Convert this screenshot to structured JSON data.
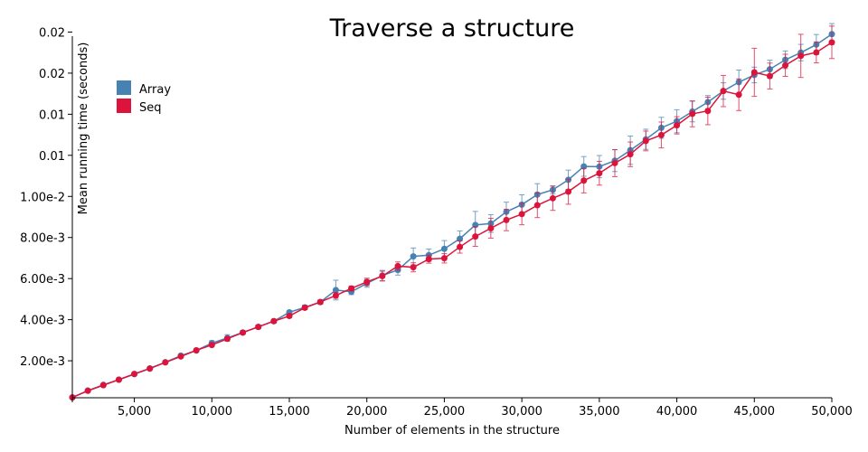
{
  "chart_data": {
    "type": "line",
    "title": "Traverse a structure",
    "xlabel": "Number of elements in the structure",
    "ylabel": "Mean running time (seconds)",
    "xlim": [
      1000,
      50000
    ],
    "ylim": [
      0.0002,
      0.0178
    ],
    "x_ticks": [
      5000,
      10000,
      15000,
      20000,
      25000,
      30000,
      35000,
      40000,
      45000,
      50000
    ],
    "x_tick_labels": [
      "5,000",
      "10,000",
      "15,000",
      "20,000",
      "25,000",
      "30,000",
      "35,000",
      "40,000",
      "45,000",
      "50,000"
    ],
    "y_ticks": [
      0.002,
      0.004,
      0.006,
      0.008,
      0.01,
      0.012,
      0.014,
      0.016,
      0.018
    ],
    "y_tick_labels": [
      "2.00e-3",
      "4.00e-3",
      "6.00e-3",
      "8.00e-3",
      "1.00e-2",
      "0.01",
      "0.01",
      "0.02",
      "0.02"
    ],
    "grid": false,
    "legend_position": "top-left",
    "x": [
      1000,
      2000,
      3000,
      4000,
      5000,
      6000,
      7000,
      8000,
      9000,
      10000,
      11000,
      12000,
      13000,
      14000,
      15000,
      16000,
      17000,
      18000,
      19000,
      20000,
      21000,
      22000,
      23000,
      24000,
      25000,
      26000,
      27000,
      28000,
      29000,
      30000,
      31000,
      32000,
      33000,
      34000,
      35000,
      36000,
      37000,
      38000,
      39000,
      40000,
      41000,
      42000,
      43000,
      44000,
      45000,
      46000,
      47000,
      48000,
      49000,
      50000
    ],
    "series": [
      {
        "name": "Array",
        "color": "#4682b4",
        "values": [
          0.000215,
          0.00055,
          0.00083,
          0.00108,
          0.00135,
          0.00163,
          0.00193,
          0.00225,
          0.0025,
          0.00286,
          0.00311,
          0.00338,
          0.00365,
          0.00393,
          0.00436,
          0.0046,
          0.00486,
          0.00544,
          0.00536,
          0.00577,
          0.00615,
          0.00642,
          0.00708,
          0.00714,
          0.00745,
          0.00794,
          0.00861,
          0.00868,
          0.00925,
          0.0096,
          0.01009,
          0.01032,
          0.01081,
          0.01146,
          0.01145,
          0.01174,
          0.01225,
          0.01278,
          0.01334,
          0.01366,
          0.01413,
          0.01459,
          0.01513,
          0.01556,
          0.01591,
          0.01619,
          0.01665,
          0.017,
          0.01739,
          0.0179
        ],
        "err": [
          2e-05,
          2e-05,
          3e-05,
          3e-05,
          4e-05,
          5e-05,
          5e-05,
          7e-05,
          6e-05,
          0.00012,
          0.00016,
          9e-05,
          9e-05,
          9e-05,
          9e-05,
          0.00011,
          0.0001,
          0.00048,
          0.00014,
          0.00019,
          0.00025,
          0.00025,
          0.00041,
          0.0003,
          0.0004,
          0.00038,
          0.00066,
          0.00043,
          0.00047,
          0.00048,
          0.00053,
          0.00019,
          0.00047,
          0.00048,
          0.00054,
          0.00053,
          0.00069,
          0.00049,
          0.00051,
          0.00056,
          0.0005,
          0.00032,
          0.0004,
          0.00059,
          0.00038,
          0.00044,
          0.00043,
          0.0004,
          0.00049,
          0.00051
        ]
      },
      {
        "name": "Seq",
        "color": "#dc143c",
        "values": [
          0.000215,
          0.00054,
          0.00081,
          0.00108,
          0.00136,
          0.00162,
          0.00192,
          0.00221,
          0.00251,
          0.00277,
          0.00307,
          0.00337,
          0.00365,
          0.00393,
          0.00418,
          0.00458,
          0.00486,
          0.00518,
          0.00552,
          0.00584,
          0.00612,
          0.00661,
          0.00655,
          0.00695,
          0.00699,
          0.00754,
          0.00805,
          0.00845,
          0.00885,
          0.00914,
          0.00957,
          0.00991,
          0.01023,
          0.01077,
          0.01113,
          0.01162,
          0.01205,
          0.0127,
          0.01299,
          0.01346,
          0.01402,
          0.01416,
          0.01513,
          0.01495,
          0.01604,
          0.01586,
          0.01638,
          0.01684,
          0.01701,
          0.0175
        ],
        "err": [
          2e-05,
          2e-05,
          3e-05,
          3e-05,
          4e-05,
          4e-05,
          5e-05,
          5e-05,
          6e-05,
          6e-05,
          7e-05,
          7e-05,
          8e-05,
          8e-05,
          8e-05,
          9e-05,
          9e-05,
          0.00014,
          0.00012,
          0.00018,
          0.00024,
          0.0002,
          0.00022,
          0.0002,
          0.00023,
          0.0003,
          0.00048,
          0.00048,
          0.00052,
          0.00052,
          0.0006,
          0.00059,
          0.00061,
          0.0006,
          0.00058,
          0.00066,
          0.0006,
          0.00048,
          0.00063,
          0.00042,
          0.00063,
          0.00067,
          0.00076,
          0.00077,
          0.00117,
          0.00063,
          0.00054,
          0.00105,
          0.00051,
          0.00079
        ]
      }
    ]
  }
}
